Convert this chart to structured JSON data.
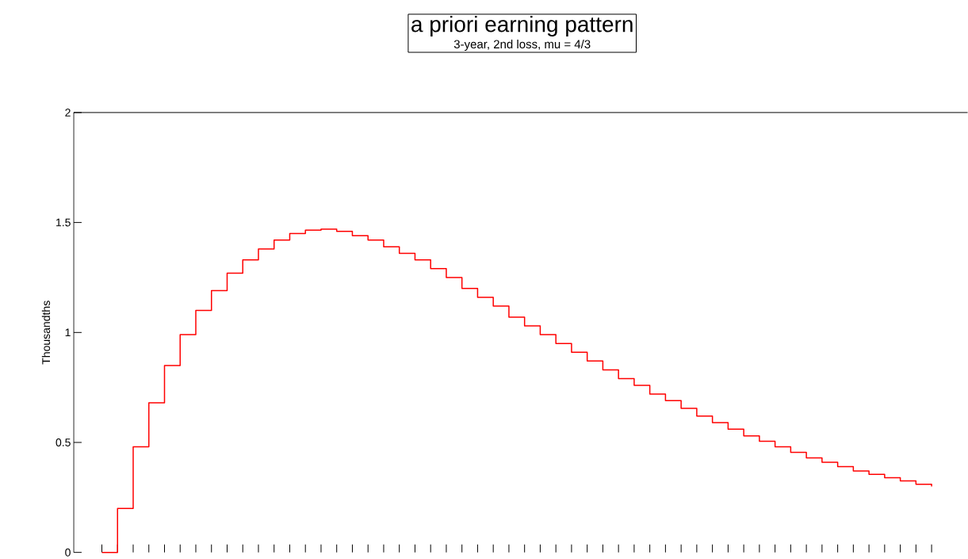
{
  "chart_data": {
    "type": "step",
    "title": "a priori earning pattern",
    "subtitle": "3-year, 2nd loss, mu = 4/3",
    "ylabel": "Thousandths",
    "categories": [
      null,
      null,
      null,
      null,
      null,
      null,
      null,
      null,
      null,
      null,
      null,
      null,
      null,
      null,
      null,
      null,
      null,
      null,
      null,
      null,
      null,
      null,
      null,
      null,
      null,
      null,
      null,
      null,
      null,
      null,
      null,
      null,
      null,
      null,
      null,
      null,
      null,
      null,
      null,
      null,
      null,
      null,
      null,
      null,
      null,
      null,
      null,
      null,
      null,
      null,
      null,
      null,
      null,
      null
    ],
    "series": [
      {
        "color": "#ff0000",
        "values": [
          0,
          0.2,
          0.48,
          0.68,
          0.85,
          0.99,
          1.1,
          1.19,
          1.27,
          1.33,
          1.38,
          1.42,
          1.45,
          1.465,
          1.47,
          1.46,
          1.44,
          1.42,
          1.39,
          1.36,
          1.33,
          1.29,
          1.25,
          1.2,
          1.16,
          1.12,
          1.07,
          1.03,
          0.99,
          0.95,
          0.91,
          0.87,
          0.83,
          0.79,
          0.76,
          0.72,
          0.69,
          0.655,
          0.62,
          0.59,
          0.56,
          0.53,
          0.505,
          0.48,
          0.455,
          0.43,
          0.41,
          0.39,
          0.37,
          0.355,
          0.34,
          0.325,
          0.31,
          0.3
        ]
      }
    ],
    "ylim": [
      0,
      2
    ],
    "yticks": [
      0,
      0.5,
      1,
      1.5,
      2
    ],
    "grid": false,
    "tick_labels": "y"
  }
}
